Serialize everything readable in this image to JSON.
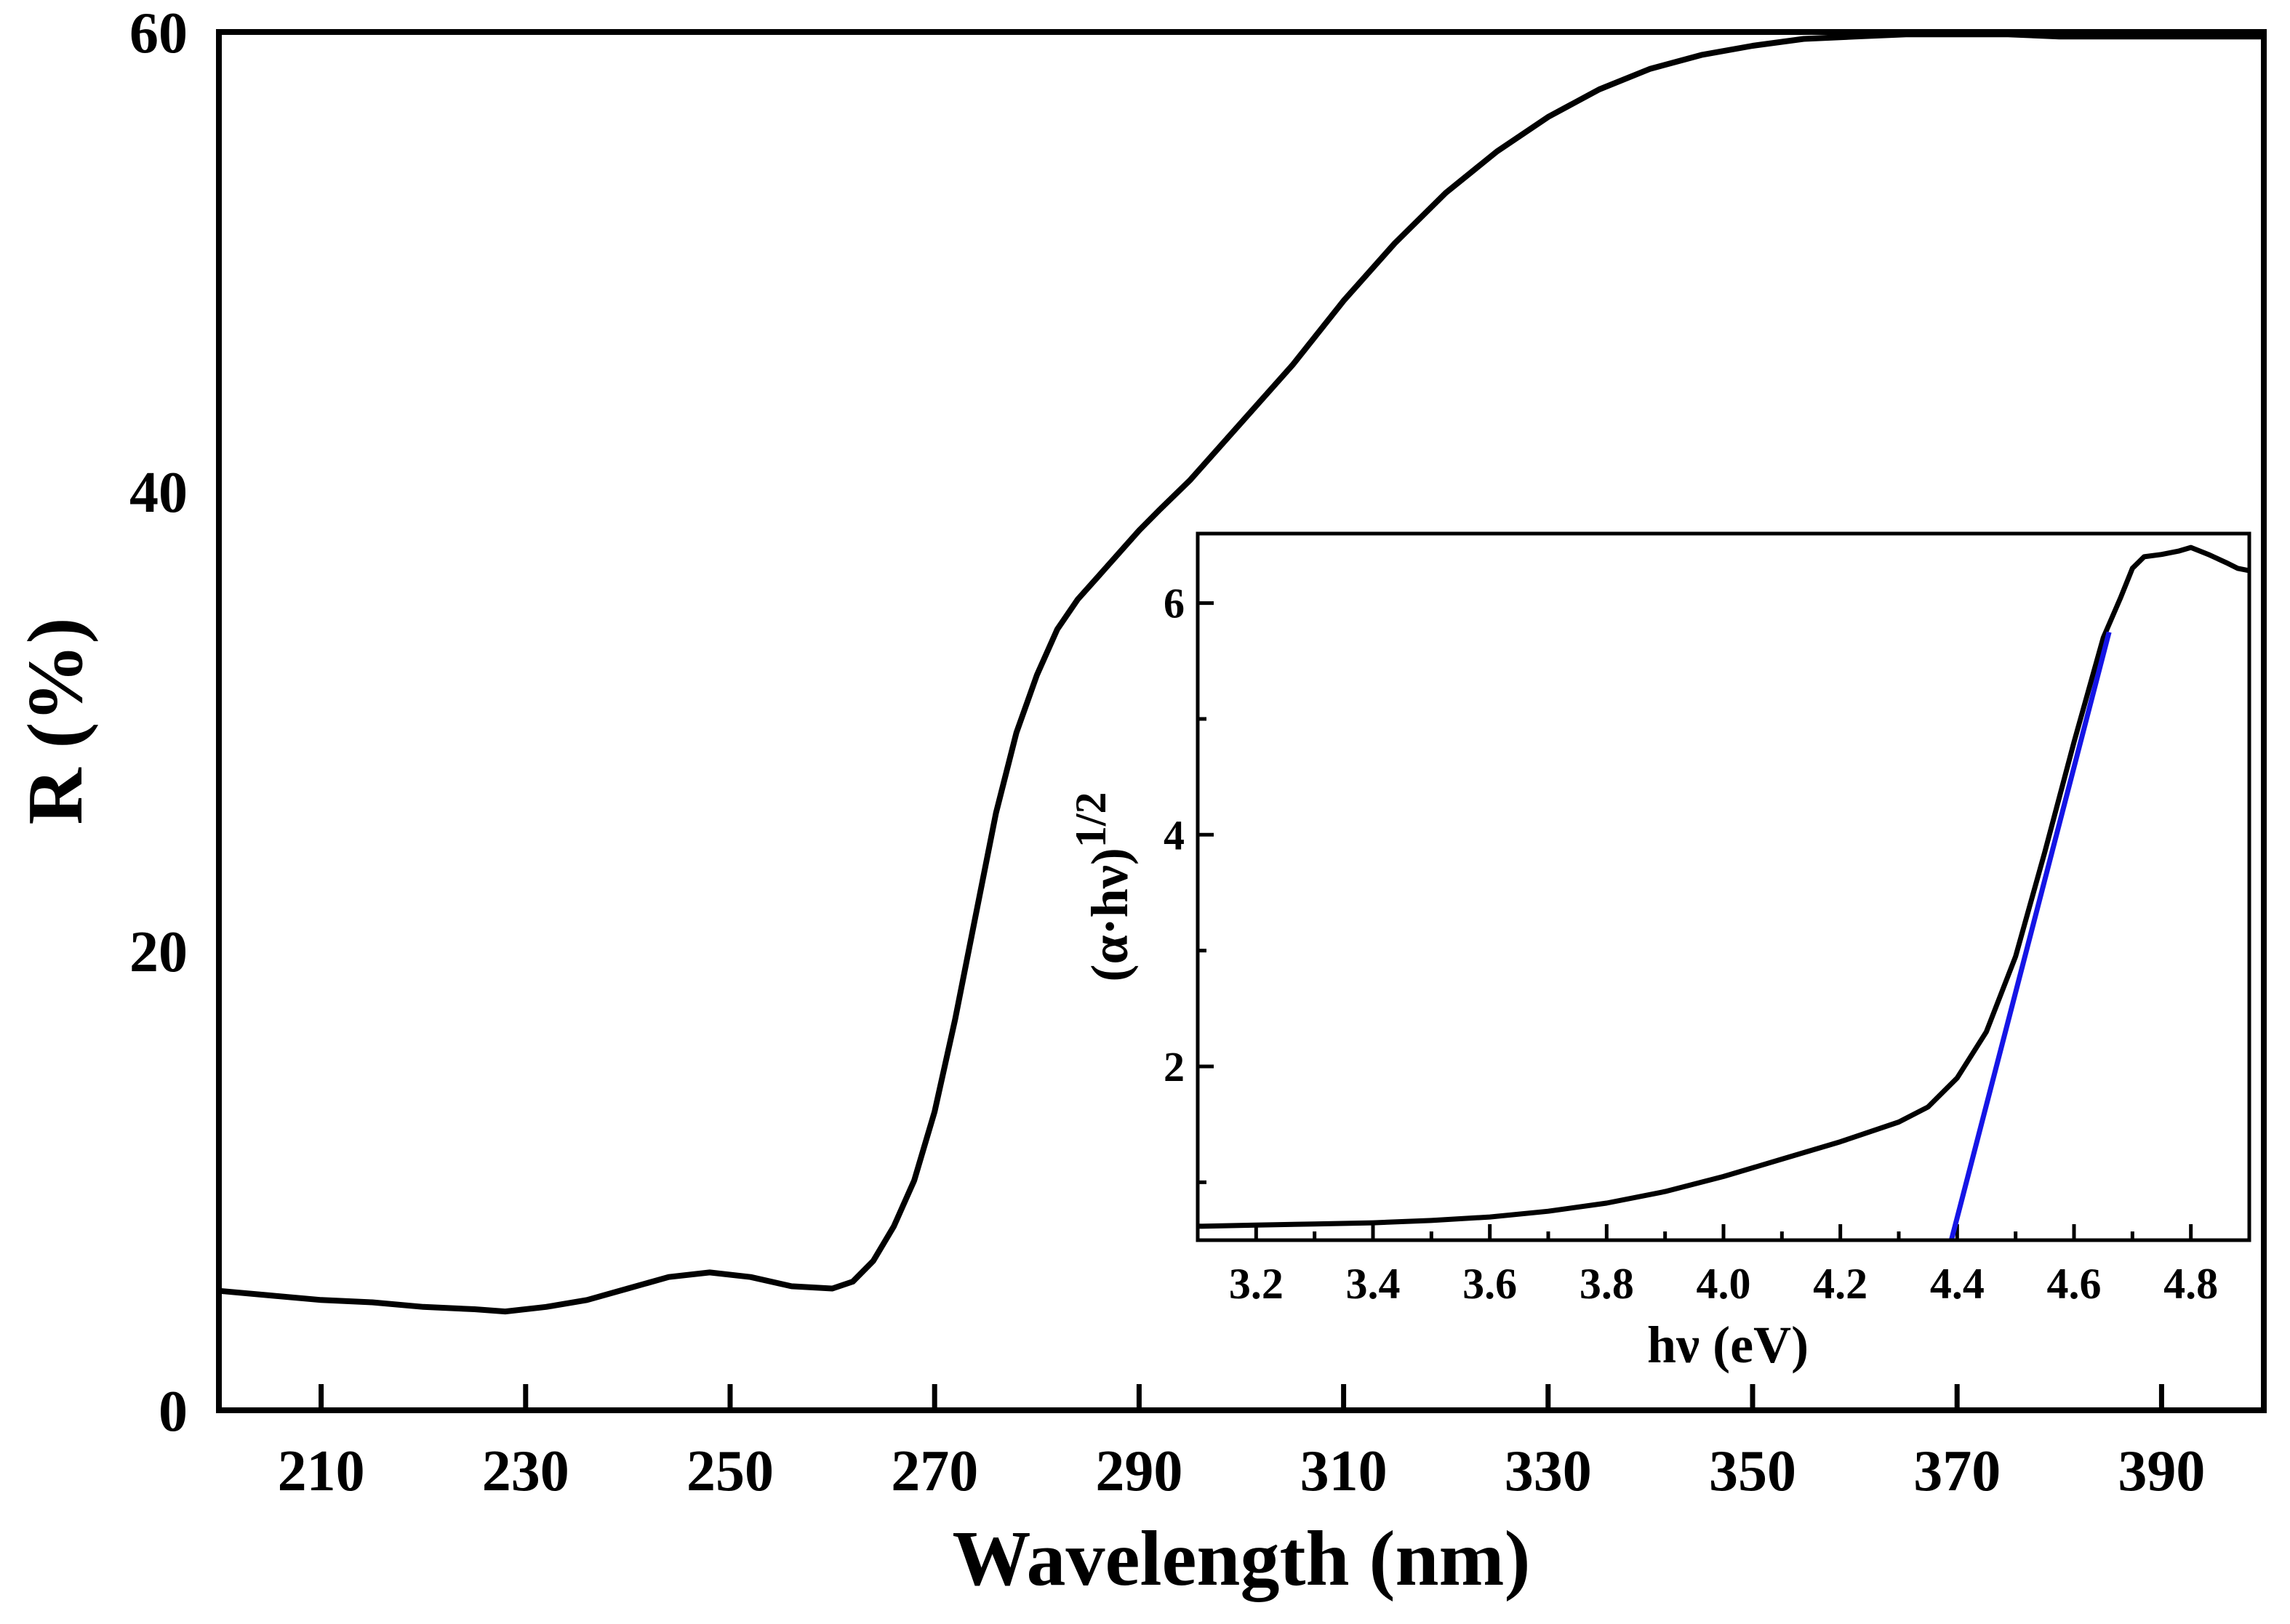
{
  "chart_data": [
    {
      "type": "line",
      "name": "reflectance",
      "title": "",
      "xlabel": "Wavelength (nm)",
      "ylabel": "R (%)",
      "xlim": [
        200,
        400
      ],
      "ylim": [
        0,
        60
      ],
      "x_ticks": [
        210,
        230,
        250,
        270,
        290,
        310,
        330,
        350,
        370,
        390
      ],
      "y_ticks": [
        0,
        20,
        40,
        60
      ],
      "grid": false,
      "series": [
        {
          "name": "R",
          "color": "#000000",
          "x": [
            200,
            205,
            210,
            215,
            220,
            225,
            228,
            232,
            236,
            240,
            244,
            248,
            252,
            256,
            260,
            262,
            264,
            266,
            268,
            270,
            272,
            274,
            276,
            278,
            280,
            282,
            284,
            286,
            288,
            290,
            292,
            295,
            300,
            305,
            310,
            315,
            320,
            325,
            330,
            335,
            340,
            345,
            350,
            355,
            360,
            365,
            370,
            375,
            380,
            390,
            400
          ],
          "values": [
            5.2,
            5.0,
            4.8,
            4.7,
            4.5,
            4.4,
            4.3,
            4.5,
            4.8,
            5.3,
            5.8,
            6.0,
            5.8,
            5.4,
            5.3,
            5.6,
            6.5,
            8.0,
            10.0,
            13.0,
            17.0,
            21.5,
            26.0,
            29.5,
            32.0,
            34.0,
            35.3,
            36.3,
            37.3,
            38.3,
            39.2,
            40.5,
            43.0,
            45.5,
            48.3,
            50.8,
            53.0,
            54.8,
            56.3,
            57.5,
            58.4,
            59.0,
            59.4,
            59.7,
            59.8,
            59.9,
            59.9,
            59.9,
            59.8,
            59.8,
            59.8
          ]
        }
      ]
    },
    {
      "type": "line",
      "name": "tauc-inset",
      "title": "",
      "xlabel": "hν (eV)",
      "ylabel": "(α·hν)",
      "ylabel_sup": "1/2",
      "xlim": [
        3.1,
        4.9
      ],
      "ylim": [
        0.5,
        6.6
      ],
      "x_ticks": [
        3.2,
        3.4,
        3.6,
        3.8,
        4.0,
        4.2,
        4.4,
        4.6,
        4.8
      ],
      "x_tick_labels": [
        "3.2",
        "3.4",
        "3.6",
        "3.8",
        "4.0",
        "4.2",
        "4.4",
        "4.6",
        "4.8"
      ],
      "y_ticks": [
        2,
        4,
        6
      ],
      "y_minor_ticks": [
        1,
        3,
        5
      ],
      "grid": false,
      "series": [
        {
          "name": "Tauc",
          "color": "#000000",
          "x": [
            3.1,
            3.2,
            3.3,
            3.4,
            3.5,
            3.6,
            3.7,
            3.8,
            3.9,
            4.0,
            4.1,
            4.2,
            4.3,
            4.35,
            4.4,
            4.45,
            4.5,
            4.55,
            4.6,
            4.65,
            4.68,
            4.7,
            4.72,
            4.75,
            4.78,
            4.8,
            4.83,
            4.86,
            4.88,
            4.9
          ],
          "values": [
            0.62,
            0.63,
            0.64,
            0.65,
            0.67,
            0.7,
            0.75,
            0.82,
            0.92,
            1.05,
            1.2,
            1.35,
            1.52,
            1.65,
            1.9,
            2.3,
            2.95,
            3.85,
            4.8,
            5.7,
            6.05,
            6.3,
            6.4,
            6.42,
            6.45,
            6.48,
            6.42,
            6.35,
            6.3,
            6.28
          ]
        },
        {
          "name": "Linear fit",
          "color": "#1515e6",
          "x": [
            4.39,
            4.66
          ],
          "values": [
            0.5,
            5.75
          ]
        }
      ]
    }
  ]
}
